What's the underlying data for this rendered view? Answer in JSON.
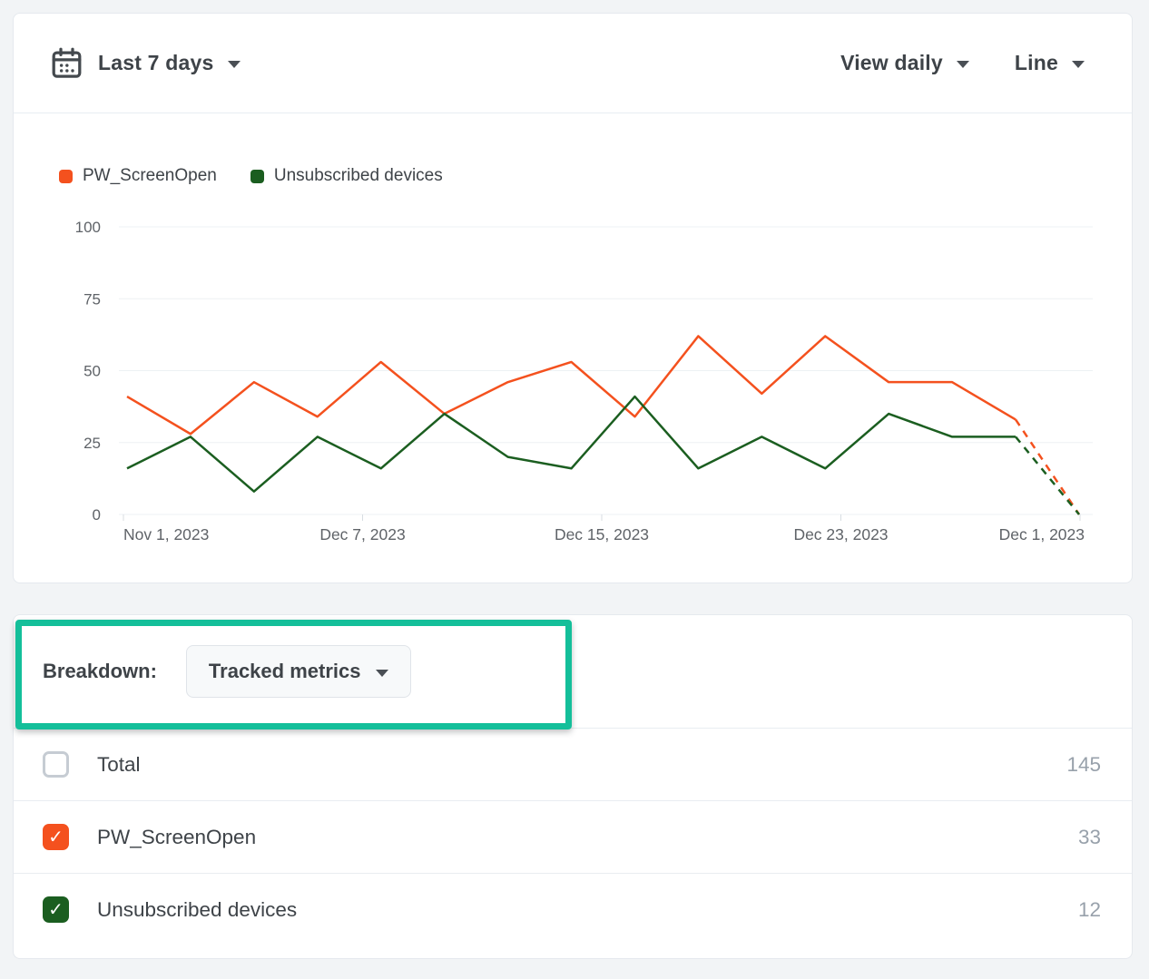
{
  "toolbar": {
    "date_range": "Last 7 days",
    "view_mode": "View daily",
    "chart_type": "Line"
  },
  "chart_data": {
    "type": "line",
    "title": "",
    "x_tick_labels": [
      "Nov 1, 2023",
      "Dec 7, 2023",
      "Dec 15, 2023",
      "Dec 23, 2023",
      "Dec 1, 2023"
    ],
    "y_ticks": [
      0,
      25,
      50,
      75,
      100
    ],
    "ylim": [
      0,
      100
    ],
    "grid": true,
    "legend_position": "top-left",
    "last_segment_dashed": true,
    "series": [
      {
        "name": "PW_ScreenOpen",
        "color": "#f4511e",
        "values": [
          41,
          28,
          46,
          34,
          53,
          35,
          46,
          53,
          34,
          62,
          42,
          62,
          46,
          46,
          33,
          0
        ]
      },
      {
        "name": "Unsubscribed devices",
        "color": "#1b5e20",
        "values": [
          16,
          27,
          8,
          27,
          16,
          35,
          20,
          16,
          41,
          16,
          27,
          16,
          35,
          27,
          27,
          0
        ]
      }
    ]
  },
  "breakdown": {
    "label": "Breakdown:",
    "selector_value": "Tracked metrics"
  },
  "table": {
    "rows": [
      {
        "label": "Total",
        "value": "145",
        "checked": false,
        "color": ""
      },
      {
        "label": "PW_ScreenOpen",
        "value": "33",
        "checked": true,
        "color": "#f4511e"
      },
      {
        "label": "Unsubscribed devices",
        "value": "12",
        "checked": true,
        "color": "#1b5e20"
      }
    ]
  },
  "colors": {
    "series_orange": "#f4511e",
    "series_green": "#1b5e20",
    "annotation_highlight": "#14bf9a",
    "page_background": "#f2f4f6"
  }
}
